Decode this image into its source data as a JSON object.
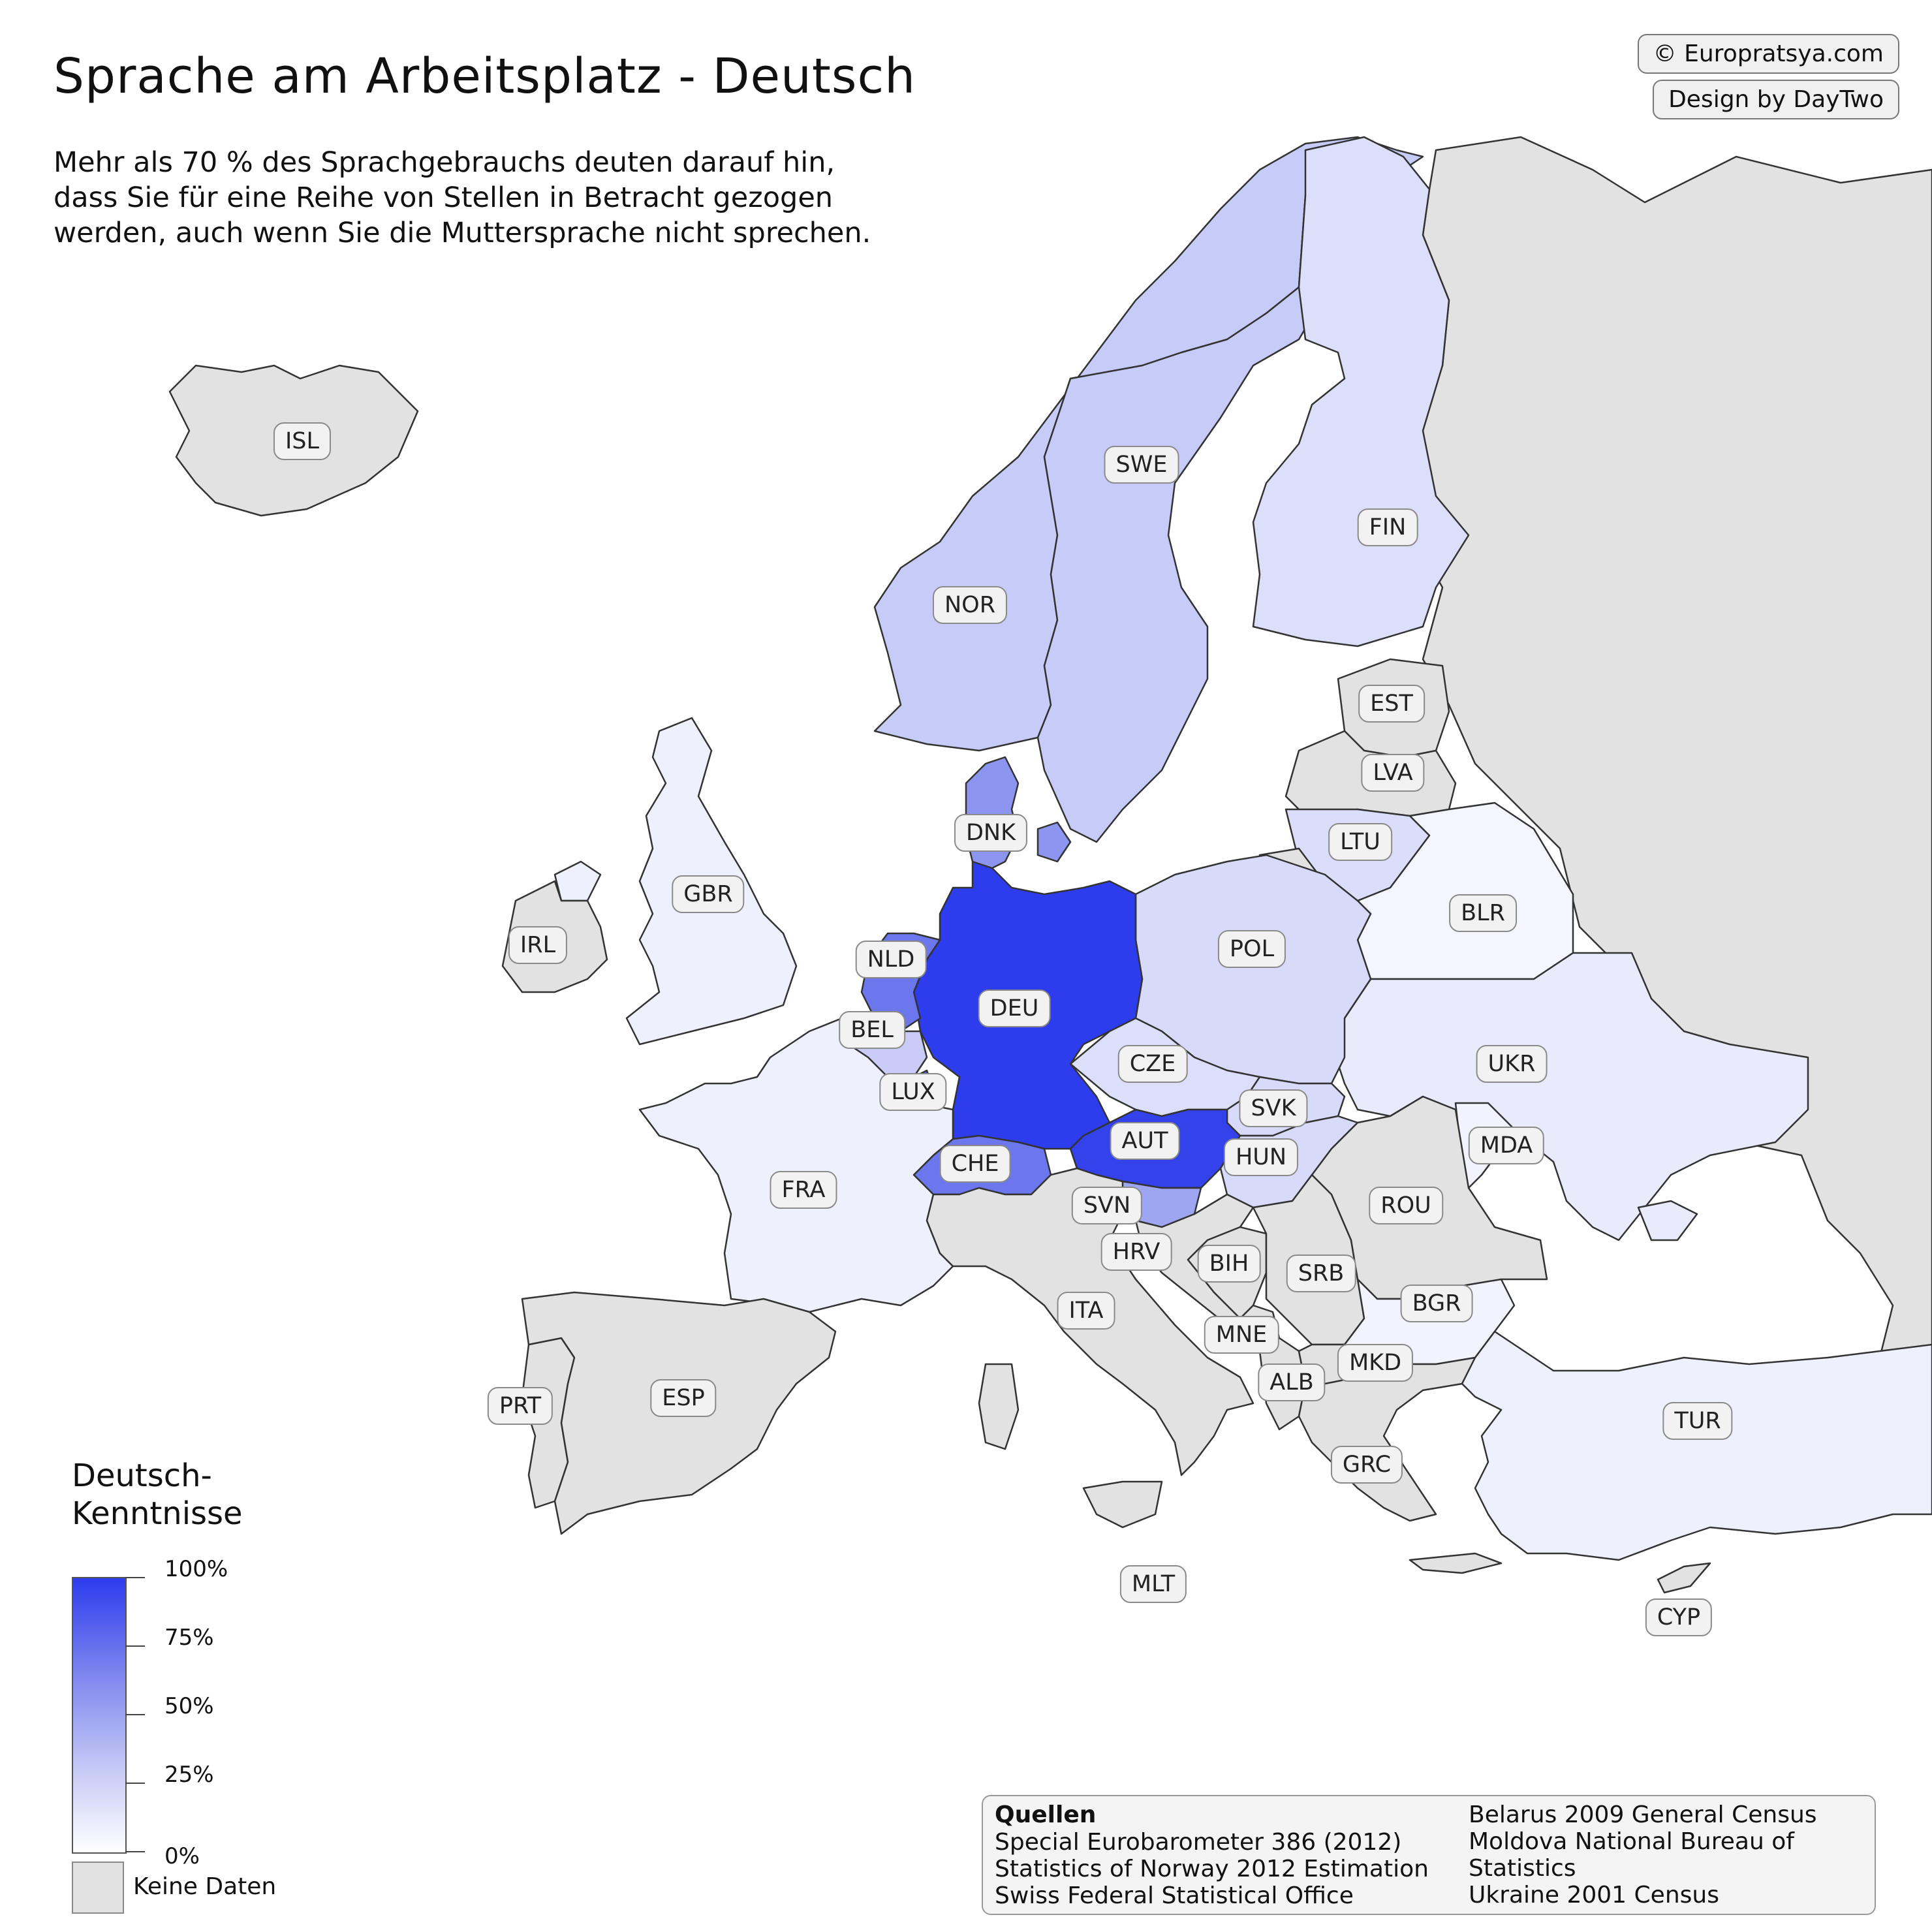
{
  "title": "Sprache am Arbeitsplatz - Deutsch",
  "subtitle": "Mehr als 70 % des Sprachgebrauchs deuten darauf hin, dass Sie für eine Reihe von Stellen in Betracht gezogen werden, auch wenn Sie die Muttersprache nicht sprechen.",
  "credits": {
    "site": "© Europratsya.com",
    "design": "Design by DayTwo"
  },
  "legend": {
    "title": "Deutsch-Kenntnisse",
    "ticks": [
      "100%",
      "75%",
      "50%",
      "25%",
      "0%"
    ],
    "no_data": "Keine Daten",
    "scale_colors": {
      "max": "#2d3ced",
      "min": "#ffffff",
      "no_data": "#e2e2e2"
    }
  },
  "sources": {
    "heading": "Quellen",
    "left": [
      "Special Eurobarometer 386 (2012)",
      "Statistics of Norway 2012 Estimation",
      "Swiss Federal Statistical Office"
    ],
    "right": [
      "Belarus 2009 General Census",
      "Moldova National Bureau of Statistics",
      "Ukraine 2001 Census"
    ]
  },
  "countries": [
    {
      "code": "ISL",
      "level": null
    },
    {
      "code": "NOR",
      "level": 0.35
    },
    {
      "code": "SWE",
      "level": 0.3
    },
    {
      "code": "FIN",
      "level": 0.2
    },
    {
      "code": "EST",
      "level": null
    },
    {
      "code": "LVA",
      "level": null
    },
    {
      "code": "LTU",
      "level": 0.18
    },
    {
      "code": "DNK",
      "level": 0.55
    },
    {
      "code": "GBR",
      "level": 0.08
    },
    {
      "code": "IRL",
      "level": null
    },
    {
      "code": "BLR",
      "level": 0.04
    },
    {
      "code": "NLD",
      "level": 0.65
    },
    {
      "code": "DEU",
      "level": 1.0
    },
    {
      "code": "POL",
      "level": 0.2
    },
    {
      "code": "BEL",
      "level": 0.25
    },
    {
      "code": "CZE",
      "level": 0.15
    },
    {
      "code": "UKR",
      "level": 0.1
    },
    {
      "code": "LUX",
      "level": 0.85
    },
    {
      "code": "SVK",
      "level": 0.2
    },
    {
      "code": "AUT",
      "level": 0.95
    },
    {
      "code": "HUN",
      "level": 0.2
    },
    {
      "code": "MDA",
      "level": 0.05
    },
    {
      "code": "CHE",
      "level": 0.65
    },
    {
      "code": "FRA",
      "level": 0.07
    },
    {
      "code": "ROU",
      "level": null
    },
    {
      "code": "SVN",
      "level": 0.45
    },
    {
      "code": "HRV",
      "level": null
    },
    {
      "code": "BIH",
      "level": null
    },
    {
      "code": "SRB",
      "level": null
    },
    {
      "code": "BGR",
      "level": 0.06
    },
    {
      "code": "ITA",
      "level": null
    },
    {
      "code": "MNE",
      "level": null
    },
    {
      "code": "MKD",
      "level": null
    },
    {
      "code": "ALB",
      "level": null
    },
    {
      "code": "PRT",
      "level": null
    },
    {
      "code": "ESP",
      "level": null
    },
    {
      "code": "GRC",
      "level": null
    },
    {
      "code": "TUR",
      "level": 0.05
    },
    {
      "code": "MLT",
      "level": null
    },
    {
      "code": "CYP",
      "level": null
    }
  ]
}
